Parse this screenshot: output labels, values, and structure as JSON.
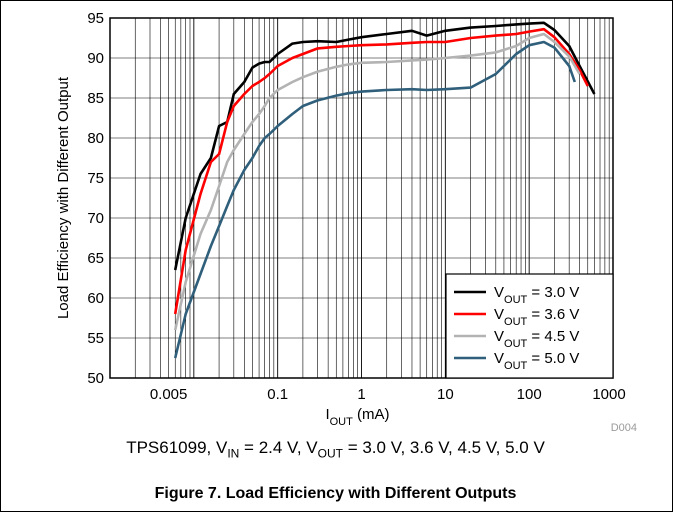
{
  "chart_data": {
    "type": "line",
    "xscale": "log",
    "xlim": [
      0.001,
      1000
    ],
    "ylim": [
      50,
      95
    ],
    "grid": true,
    "xlabel": "I_OUT (mA)",
    "ylabel": "Load Efficiency with Different Output",
    "x_ticks": [
      "0.005",
      "0.1",
      "1",
      "10",
      "100",
      "1000"
    ],
    "y_ticks": [
      "50",
      "55",
      "60",
      "65",
      "70",
      "75",
      "80",
      "85",
      "90",
      "95"
    ],
    "legend_position": "bottom-right",
    "figure_id": "D004",
    "series": [
      {
        "name": "V_OUT = 3.0 V",
        "label_parts": [
          "V",
          "OUT",
          " = 3.0 V"
        ],
        "color": "#000000",
        "x": [
          0.006,
          0.008,
          0.012,
          0.016,
          0.02,
          0.025,
          0.03,
          0.04,
          0.05,
          0.06,
          0.07,
          0.08,
          0.1,
          0.15,
          0.2,
          0.3,
          0.5,
          0.7,
          1,
          2,
          4,
          6,
          10,
          20,
          40,
          70,
          100,
          150,
          200,
          300,
          400,
          600
        ],
        "y": [
          63.5,
          70,
          75.5,
          77.5,
          81.5,
          82,
          85.5,
          87,
          88.8,
          89.3,
          89.5,
          89.5,
          90.5,
          91.8,
          92,
          92.1,
          92.0,
          92.3,
          92.6,
          93.0,
          93.4,
          92.8,
          93.4,
          93.8,
          94.0,
          94.2,
          94.3,
          94.4,
          93.5,
          91.5,
          89,
          85.5
        ]
      },
      {
        "name": "V_OUT = 3.6 V",
        "label_parts": [
          "V",
          "OUT",
          " = 3.6 V"
        ],
        "color": "#ff0000",
        "x": [
          0.006,
          0.008,
          0.012,
          0.016,
          0.02,
          0.025,
          0.03,
          0.04,
          0.05,
          0.06,
          0.07,
          0.08,
          0.1,
          0.15,
          0.2,
          0.3,
          0.5,
          0.7,
          1,
          2,
          4,
          6,
          10,
          20,
          40,
          70,
          100,
          150,
          200,
          300,
          400,
          500
        ],
        "y": [
          58,
          66,
          73,
          77,
          78,
          82,
          84,
          85.5,
          86.5,
          87,
          87.5,
          88,
          89,
          90,
          90.5,
          91.2,
          91.4,
          91.5,
          91.6,
          91.7,
          91.9,
          92.0,
          92.0,
          92.5,
          92.8,
          93.0,
          93.3,
          93.6,
          92.6,
          90.5,
          88.5,
          86.5
        ]
      },
      {
        "name": "V_OUT = 4.5 V",
        "label_parts": [
          "V",
          "OUT",
          " = 4.5 V"
        ],
        "color": "#b3b3b3",
        "x": [
          0.006,
          0.008,
          0.012,
          0.016,
          0.02,
          0.025,
          0.03,
          0.04,
          0.05,
          0.06,
          0.07,
          0.08,
          0.1,
          0.15,
          0.2,
          0.3,
          0.5,
          0.7,
          1,
          2,
          4,
          6,
          10,
          20,
          40,
          70,
          100,
          150,
          200,
          300,
          400
        ],
        "y": [
          56,
          62,
          68,
          71,
          74,
          77,
          78.5,
          80.5,
          82,
          83,
          84,
          85,
          86,
          87,
          87.6,
          88.3,
          88.9,
          89.2,
          89.4,
          89.5,
          89.7,
          89.8,
          90.0,
          90.3,
          90.7,
          91.5,
          92.5,
          93.0,
          92.0,
          90.2,
          88.0
        ]
      },
      {
        "name": "V_OUT = 5.0 V",
        "label_parts": [
          "V",
          "OUT",
          " = 5.0 V"
        ],
        "color": "#2f5f7a",
        "x": [
          0.006,
          0.008,
          0.012,
          0.016,
          0.02,
          0.025,
          0.03,
          0.04,
          0.05,
          0.06,
          0.07,
          0.08,
          0.1,
          0.15,
          0.2,
          0.3,
          0.5,
          0.7,
          1,
          2,
          4,
          6,
          10,
          20,
          40,
          70,
          100,
          150,
          200,
          300,
          350
        ],
        "y": [
          52.5,
          58,
          63,
          66.5,
          69,
          71.5,
          73.5,
          76,
          77.5,
          79,
          80,
          80.5,
          81.5,
          83,
          84,
          84.7,
          85.3,
          85.6,
          85.8,
          86.0,
          86.1,
          86.0,
          86.1,
          86.3,
          88.0,
          90.5,
          91.6,
          92.0,
          91.3,
          89.0,
          87.0
        ]
      }
    ]
  },
  "caption": {
    "prefix": "TPS61099, V",
    "sub1": "IN",
    "mid": " = 2.4 V, V",
    "sub2": "OUT",
    "suffix": " = 3.0 V, 3.6 V, 4.5 V, 5.0 V"
  },
  "figure_title": "Figure 7. Load Efficiency with Different Outputs"
}
